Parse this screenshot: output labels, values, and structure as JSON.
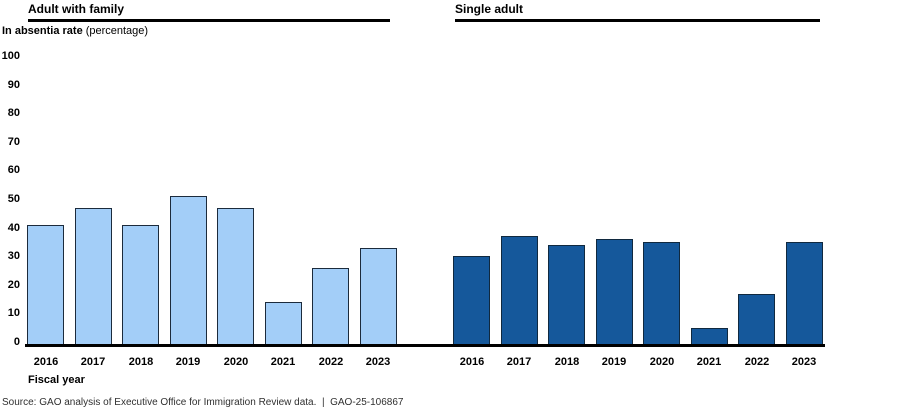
{
  "chart_data": {
    "type": "bar",
    "title": "",
    "ylabel_bold": "In absentia rate",
    "ylabel_regular": "(percentage)",
    "xlabel": "Fiscal year",
    "categories": [
      "2016",
      "2017",
      "2018",
      "2019",
      "2020",
      "2021",
      "2022",
      "2023"
    ],
    "yticks": [
      0,
      10,
      20,
      30,
      40,
      50,
      60,
      70,
      80,
      90,
      100
    ],
    "ylim": [
      0,
      100
    ],
    "grid": false,
    "legend_position": "panel-headers-above-each-group",
    "groups": [
      {
        "name": "Adult with family",
        "fill": "#A3CEF8",
        "border": "#1C2B3C",
        "values": [
          42,
          48,
          42,
          52,
          48,
          15,
          27,
          34
        ]
      },
      {
        "name": "Single adult",
        "fill": "#15589B",
        "border": "#10293F",
        "values": [
          31,
          38,
          35,
          37,
          36,
          6,
          18,
          36
        ]
      }
    ]
  },
  "source": {
    "text": "Source: GAO analysis of Executive Office for Immigration Review data.  |  GAO-25-106867"
  }
}
